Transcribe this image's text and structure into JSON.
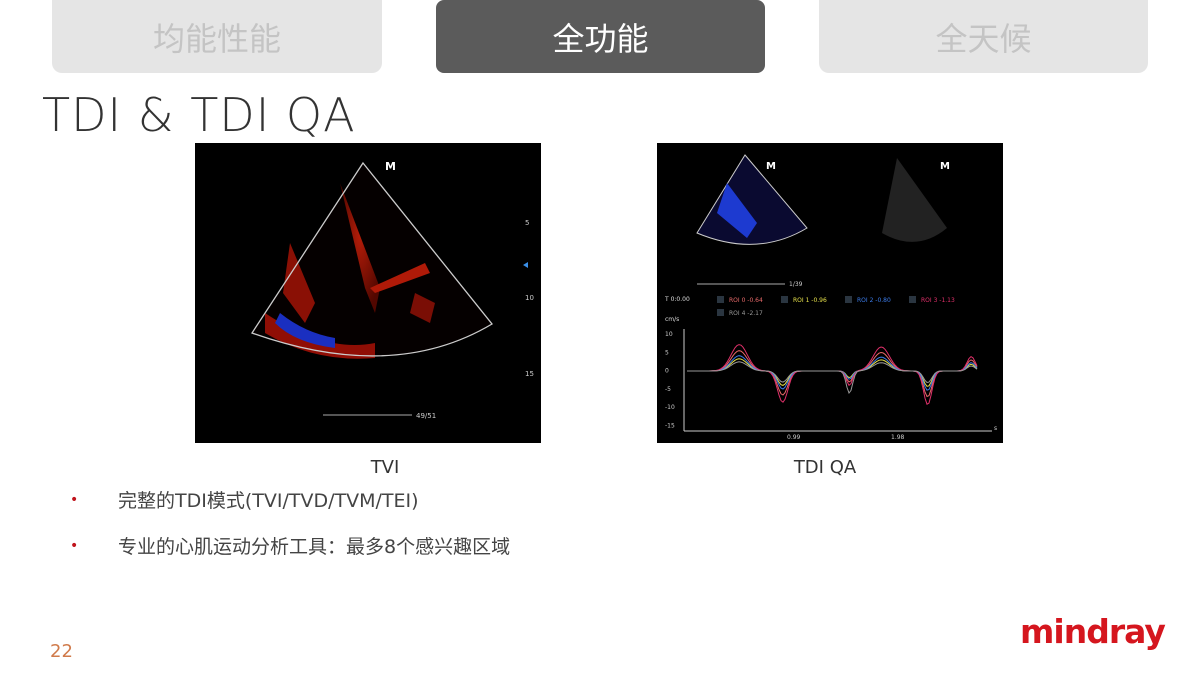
{
  "tabs": [
    {
      "label": "均能性能",
      "active": false
    },
    {
      "label": "全功能",
      "active": true
    },
    {
      "label": "全天候",
      "active": false
    }
  ],
  "title": "TDI & TDI QA",
  "images": {
    "tvi": {
      "caption": "TVI",
      "marker": "M",
      "depth_ticks": [
        "5",
        "10",
        "15"
      ],
      "frame": "49/51"
    },
    "tdiqa": {
      "caption": "TDI QA",
      "marker": "M",
      "frame": "1/39",
      "time": "T 0:0.00",
      "unit": "cm/s",
      "rois": [
        {
          "label": "ROI 0 -0.64",
          "color": "#e86a6a"
        },
        {
          "label": "ROI 1 -0.96",
          "color": "#e6e04a"
        },
        {
          "label": "ROI 2 -0.80",
          "color": "#3b7be8"
        },
        {
          "label": "ROI 3 -1.13",
          "color": "#e0306a"
        },
        {
          "label": "ROI 4 -2.17",
          "color": "#999999"
        }
      ],
      "y_ticks": [
        "10",
        "5",
        "0",
        "-5",
        "-10",
        "-15"
      ],
      "x_ticks": [
        "0.99",
        "1.98"
      ],
      "x_unit": "s"
    }
  },
  "bullets": [
    "完整的TDI模式(TVI/TVD/TVM/TEI)",
    "专业的心肌运动分析工具：最多8个感兴趣区域"
  ],
  "page_number": "22",
  "logo": "mindray",
  "colors": {
    "accent": "#d5161e",
    "active_tab": "#5b5b5b"
  }
}
